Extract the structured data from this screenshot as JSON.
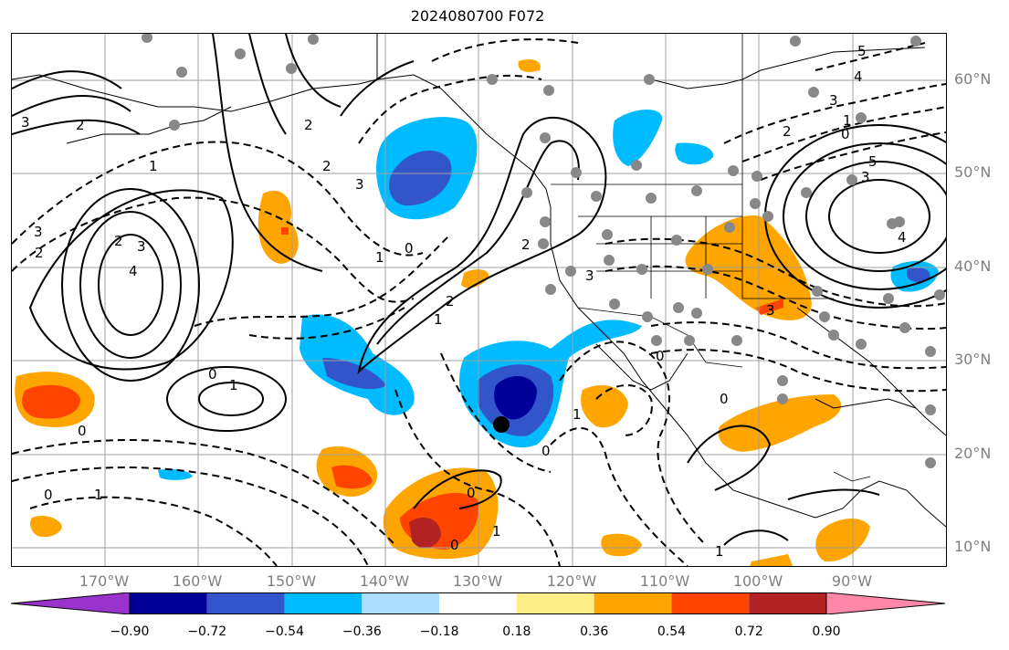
{
  "title": "2024080700 F072",
  "lat_labels": [
    "60°N",
    "50°N",
    "40°N",
    "30°N",
    "20°N",
    "10°N"
  ],
  "lon_labels": [
    "170°W",
    "160°W",
    "150°W",
    "140°W",
    "130°W",
    "120°W",
    "110°W",
    "100°W",
    "90°W"
  ],
  "colorbar": {
    "ticks": [
      "−0.90",
      "−0.72",
      "−0.54",
      "−0.36",
      "−0.18",
      "0.18",
      "0.36",
      "0.54",
      "0.72",
      "0.90"
    ],
    "colors": [
      "#9933cc",
      "#000099",
      "#3355cc",
      "#00bbff",
      "#aaddff",
      "#ffffff",
      "#ffee88",
      "#ffa500",
      "#ff4400",
      "#b22222",
      "#ff88aa"
    ]
  },
  "contour_labels": [
    "2",
    "2",
    "3",
    "2",
    "3",
    "2",
    "4",
    "3",
    "1",
    "2",
    "3",
    "1",
    "0",
    "2",
    "3",
    "0",
    "1",
    "2",
    "1",
    "0",
    "0",
    "1",
    "0",
    "1",
    "0",
    "0",
    "1",
    "0",
    "0",
    "1",
    "3",
    "2",
    "1",
    "0",
    "3",
    "4",
    "5",
    "3",
    "4",
    "5"
  ]
}
